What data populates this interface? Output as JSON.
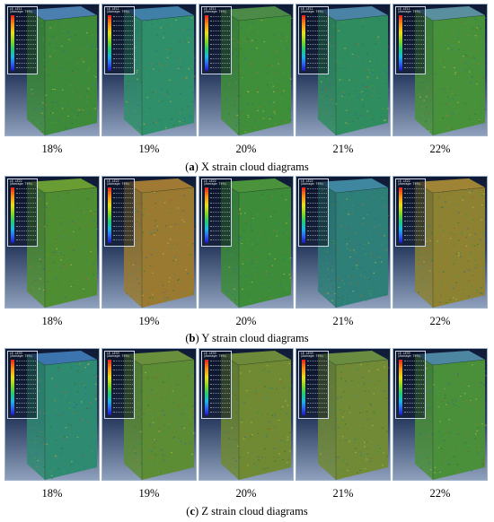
{
  "figures": [
    {
      "letter": "a",
      "caption_rest": ") X strain cloud diagrams",
      "legend_title": "LE, LE11\n(Average: 75%)",
      "panels": [
        {
          "label": "18%",
          "tint": "#3d8a3a",
          "top_tint": "#4a7fb0"
        },
        {
          "label": "19%",
          "tint": "#2f8f6a",
          "top_tint": "#3f7fa8"
        },
        {
          "label": "20%",
          "tint": "#3f8f3a",
          "top_tint": "#4c8a48"
        },
        {
          "label": "21%",
          "tint": "#2f8c5e",
          "top_tint": "#4b83a6"
        },
        {
          "label": "22%",
          "tint": "#47913a",
          "top_tint": "#5a8fa0"
        }
      ]
    },
    {
      "letter": "b",
      "caption_rest": ") Y strain cloud diagrams",
      "legend_title": "LE, LE22\n(Average: 75%)",
      "panels": [
        {
          "label": "18%",
          "tint": "#4f8d32",
          "top_tint": "#6a9c34"
        },
        {
          "label": "19%",
          "tint": "#9a7a30",
          "top_tint": "#a07a34"
        },
        {
          "label": "20%",
          "tint": "#3c8c3a",
          "top_tint": "#4a923c"
        },
        {
          "label": "21%",
          "tint": "#2d7f78",
          "top_tint": "#3f86a0"
        },
        {
          "label": "22%",
          "tint": "#8c8232",
          "top_tint": "#a08436"
        }
      ]
    },
    {
      "letter": "c",
      "caption_rest": ") Z strain cloud diagrams",
      "legend_title": "LE, LE33\n(Average: 75%)",
      "panels": [
        {
          "label": "18%",
          "tint": "#2f8a72",
          "top_tint": "#3c74b0"
        },
        {
          "label": "19%",
          "tint": "#5c8c34",
          "top_tint": "#6a8f3c"
        },
        {
          "label": "20%",
          "tint": "#6f8a32",
          "top_tint": "#6d8a3a"
        },
        {
          "label": "21%",
          "tint": "#708a36",
          "top_tint": "#6a8c40"
        },
        {
          "label": "22%",
          "tint": "#4a8f3a",
          "top_tint": "#4c86a0"
        }
      ]
    }
  ],
  "colors": {
    "legend_scale": [
      "#e8231c",
      "#f58a1a",
      "#e8e020",
      "#7fd52a",
      "#25c97a",
      "#1fb6e0",
      "#2f5ff0",
      "#1a1ab8"
    ],
    "viewport_bg_top": "#0e1a36",
    "viewport_bg_bottom": "#8ea0bc"
  }
}
